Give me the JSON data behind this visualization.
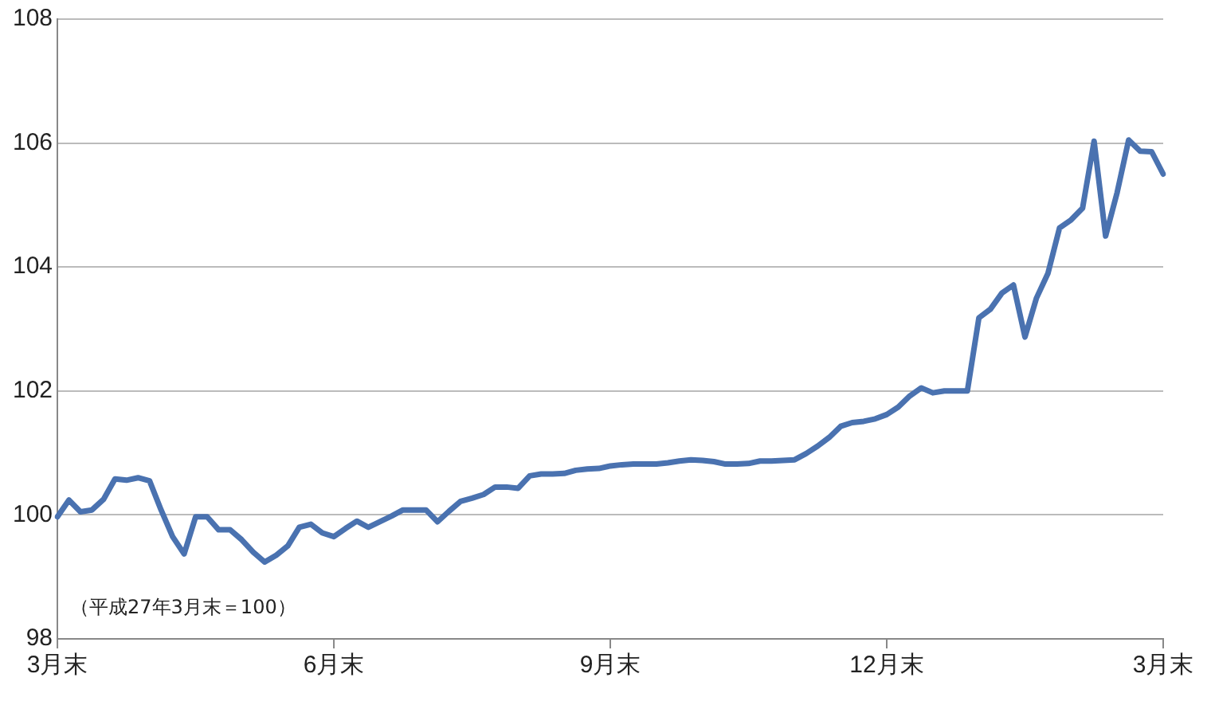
{
  "chart_data": {
    "type": "line",
    "annotations": [
      "（平成27年3月末＝100）"
    ],
    "categories": [
      "3月末",
      null,
      null,
      null,
      null,
      null,
      null,
      null,
      null,
      null,
      null,
      null,
      null,
      null,
      null,
      null,
      null,
      null,
      null,
      null,
      null,
      null,
      null,
      null,
      "6月末",
      null,
      null,
      null,
      null,
      null,
      null,
      null,
      null,
      null,
      null,
      null,
      null,
      null,
      null,
      null,
      null,
      null,
      null,
      null,
      null,
      null,
      null,
      null,
      "9月末",
      null,
      null,
      null,
      null,
      null,
      null,
      null,
      null,
      null,
      null,
      null,
      null,
      null,
      null,
      null,
      null,
      null,
      null,
      null,
      null,
      null,
      null,
      null,
      "12月末",
      null,
      null,
      null,
      null,
      null,
      null,
      null,
      null,
      null,
      null,
      null,
      null,
      null,
      null,
      null,
      null,
      null,
      null,
      null,
      null,
      null,
      null,
      null,
      "3月末"
    ],
    "series": [
      {
        "color": "#4a72b0",
        "values": [
          99.97,
          100.24,
          100.05,
          100.08,
          100.25,
          100.58,
          100.56,
          100.6,
          100.55,
          100.08,
          99.65,
          99.37,
          99.97,
          99.97,
          99.76,
          99.76,
          99.6,
          99.4,
          99.24,
          99.35,
          99.5,
          99.8,
          99.85,
          99.71,
          99.65,
          99.78,
          99.9,
          99.8,
          99.89,
          99.98,
          100.08,
          100.08,
          100.08,
          99.89,
          100.06,
          100.22,
          100.27,
          100.33,
          100.45,
          100.45,
          100.43,
          100.63,
          100.66,
          100.66,
          100.67,
          100.72,
          100.74,
          100.75,
          100.79,
          100.81,
          100.82,
          100.82,
          100.82,
          100.84,
          100.87,
          100.89,
          100.88,
          100.86,
          100.82,
          100.82,
          100.83,
          100.87,
          100.87,
          100.88,
          100.89,
          100.99,
          101.11,
          101.25,
          101.43,
          101.49,
          101.51,
          101.55,
          101.62,
          101.74,
          101.92,
          102.05,
          101.97,
          102.0,
          102.0,
          102.0,
          103.18,
          103.32,
          103.58,
          103.71,
          102.87,
          103.5,
          103.9,
          104.63,
          104.76,
          104.95,
          106.03,
          104.5,
          105.2,
          106.05,
          105.87,
          105.86,
          105.5
        ]
      }
    ],
    "ylim": [
      98,
      108
    ],
    "yticks": [
      98,
      100,
      102,
      104,
      106,
      108
    ],
    "grid": "y",
    "legend": false,
    "marker": "none",
    "line_style": "solid"
  }
}
